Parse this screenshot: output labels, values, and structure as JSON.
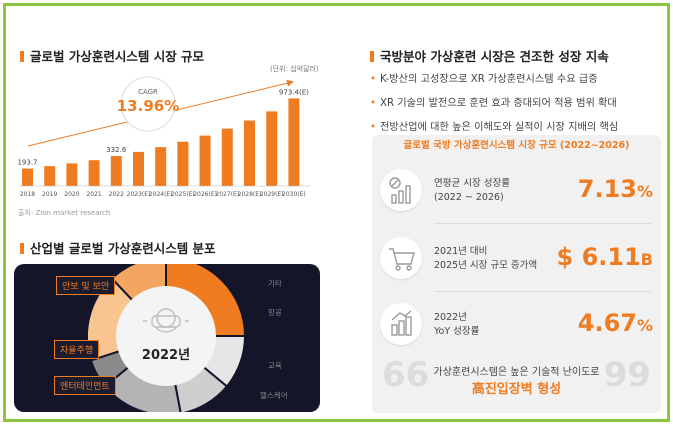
{
  "left_top": {
    "title": "글로벌 가상훈련시스템 시장 규모",
    "unit": "(단위: 십억달러)",
    "source": "출처: Zion market research",
    "cagr_label": "CAGR",
    "cagr_value": "13.96%"
  },
  "right_top": {
    "title": "국방분야 가상훈련 시장은 견조한 성장 지속",
    "bullets": [
      "K-방산의 고성장으로 XR 가상훈련시스템 수요 급증",
      "XR 기술의 발전으로 훈련 효과 증대되어 적용 범위 확대",
      "전방산업에 대한 높은 이해도와 실적이 시장 지배의 핵심"
    ]
  },
  "panel": {
    "title": "글로벌 국방 가상훈련시스템 시장 규모 (2022~2026)",
    "stats": [
      {
        "icon": "bar-growth-icon",
        "label": "연평균 시장 성장률\n(2022 ~ 2026)",
        "value": "7.13",
        "suffix": "%"
      },
      {
        "icon": "cart-icon",
        "label": "2021년 대비\n2025년 시장 규모 증가액",
        "value": "$ 6.11",
        "suffix": "B"
      },
      {
        "icon": "dollar-growth-icon",
        "label": "2022년\nYoY 성장률",
        "value": "4.67",
        "suffix": "%"
      }
    ],
    "conclusion_line1": "가상훈련시스템은 높은 기술적 난이도로",
    "conclusion_line2": "高진입장벽 형성"
  },
  "left_bottom": {
    "title": "산업별 글로벌 가상훈련시스템 분포",
    "center_label": "2022년",
    "left_labels": [
      "안보 및 보안",
      "자율주행",
      "엔터테인먼트"
    ],
    "right_labels": [
      "기타",
      "항공",
      "교육",
      "헬스케어"
    ]
  },
  "colors": {
    "accent": "#f07c22",
    "border": "#8dc63f",
    "dark_bg": "#15152a"
  },
  "chart_data": [
    {
      "type": "bar",
      "title": "글로벌 가상훈련시스템 시장 규모",
      "categories": [
        "2018",
        "2019",
        "2020",
        "2021",
        "2022",
        "2023(E)",
        "2024(E)",
        "2025(E)",
        "2026(E)",
        "2027(E)",
        "2028(E)",
        "2029(E)",
        "2030(E)"
      ],
      "values": [
        193.7,
        220.7,
        251.5,
        286.6,
        332.6,
        379.0,
        432.0,
        492.0,
        560.0,
        638.0,
        728.0,
        829.0,
        973.4
      ],
      "data_labels": [
        "193.7",
        "",
        "",
        "",
        "332.6",
        "",
        "",
        "",
        "",
        "",
        "",
        "",
        "973.4(E)"
      ],
      "annotation": "CAGR 13.96%",
      "ylabel": "",
      "ylim": [
        0,
        1000
      ]
    },
    {
      "type": "pie",
      "title": "산업별 글로벌 가상훈련시스템 분포",
      "labels": [
        "안보 및 보안",
        "기타",
        "항공",
        "교육",
        "헬스케어",
        "엔터테인먼트",
        "자율주행"
      ],
      "values": [
        25,
        11,
        11,
        17,
        6,
        18,
        12
      ],
      "colors": [
        "#f07c22",
        "#e6e6e6",
        "#cfcfcf",
        "#b4b4b4",
        "#8a8a8a",
        "#f8c590",
        "#f3a660"
      ]
    }
  ]
}
